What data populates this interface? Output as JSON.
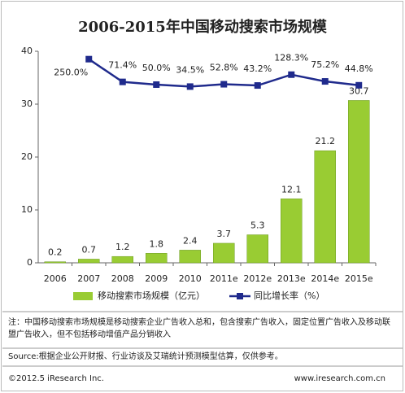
{
  "chart_data": {
    "type": "bar",
    "title": "2006-2015年中国移动搜索市场规模",
    "categories": [
      "2006",
      "2007",
      "2008",
      "2009",
      "2010",
      "2011e",
      "2012e",
      "2013e",
      "2014e",
      "2015e"
    ],
    "series": [
      {
        "name": "移动搜索市场规模（亿元）",
        "type": "bar",
        "color": "#99cc33",
        "axis": "y",
        "values": [
          0.2,
          0.7,
          1.2,
          1.8,
          2.4,
          3.7,
          5.3,
          12.1,
          21.2,
          30.7
        ]
      },
      {
        "name": "同比增长率（%）",
        "type": "line",
        "color": "#1f2a8c",
        "axis": "y2",
        "values": [
          null,
          250.0,
          71.4,
          50.0,
          34.5,
          52.8,
          43.2,
          128.3,
          75.2,
          44.8
        ],
        "value_labels": [
          null,
          "250.0%",
          "71.4%",
          "50.0%",
          "34.5%",
          "52.8%",
          "43.2%",
          "128.3%",
          "75.2%",
          "44.8%"
        ]
      }
    ],
    "ylim": [
      0,
      40
    ],
    "yticks": [
      0,
      10,
      20,
      30,
      40
    ],
    "y2lim": [
      -1350,
      312
    ],
    "note": "注：中国移动搜索市场规模是移动搜索企业广告收入总和，包含搜索广告收入，固定位置广告收入及移动联盟广告收入，但不包括移动增值产品分销收入",
    "source": "Source:根据企业公开财报、行业访谈及艾瑞统计预测模型估算，仅供参考。",
    "copyright": "©2012.5 iResearch Inc.",
    "website": "www.iresearch.com.cn"
  }
}
